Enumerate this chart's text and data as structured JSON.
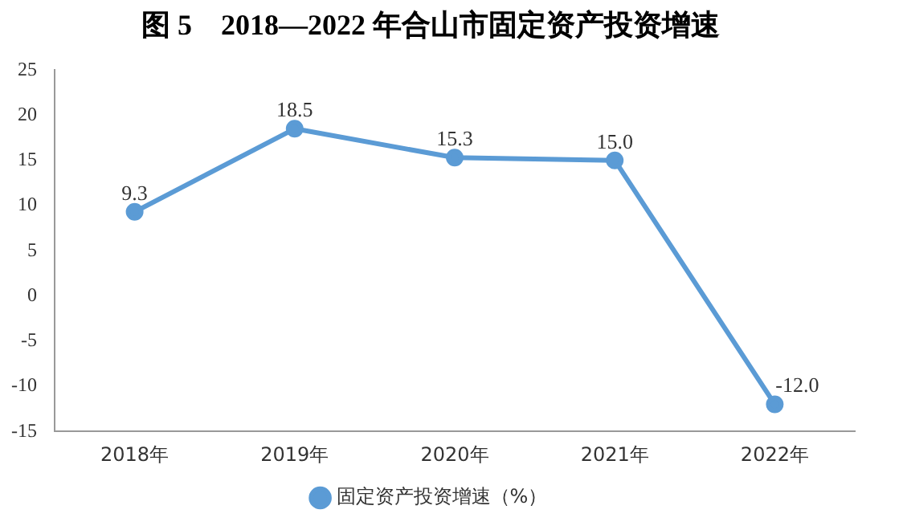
{
  "chart_data": {
    "type": "line",
    "title": "图 5　2018—2022 年合山市固定资产投资增速",
    "categories": [
      "2018年",
      "2019年",
      "2020年",
      "2021年",
      "2022年"
    ],
    "series": [
      {
        "name": "固定资产投资增速（%）",
        "color": "#5b9bd5",
        "values": [
          9.3,
          18.5,
          15.3,
          15.0,
          -12.0
        ]
      }
    ],
    "ylim": [
      -15,
      25
    ],
    "yticks": [
      -15,
      -10,
      -5,
      0,
      5,
      10,
      15,
      20,
      25
    ],
    "value_labels": [
      "9.3",
      "18.5",
      "15.3",
      "15.0",
      "-12.0"
    ],
    "grid": false,
    "legend": "bottom",
    "marker": "circle",
    "line_style": "solid"
  }
}
